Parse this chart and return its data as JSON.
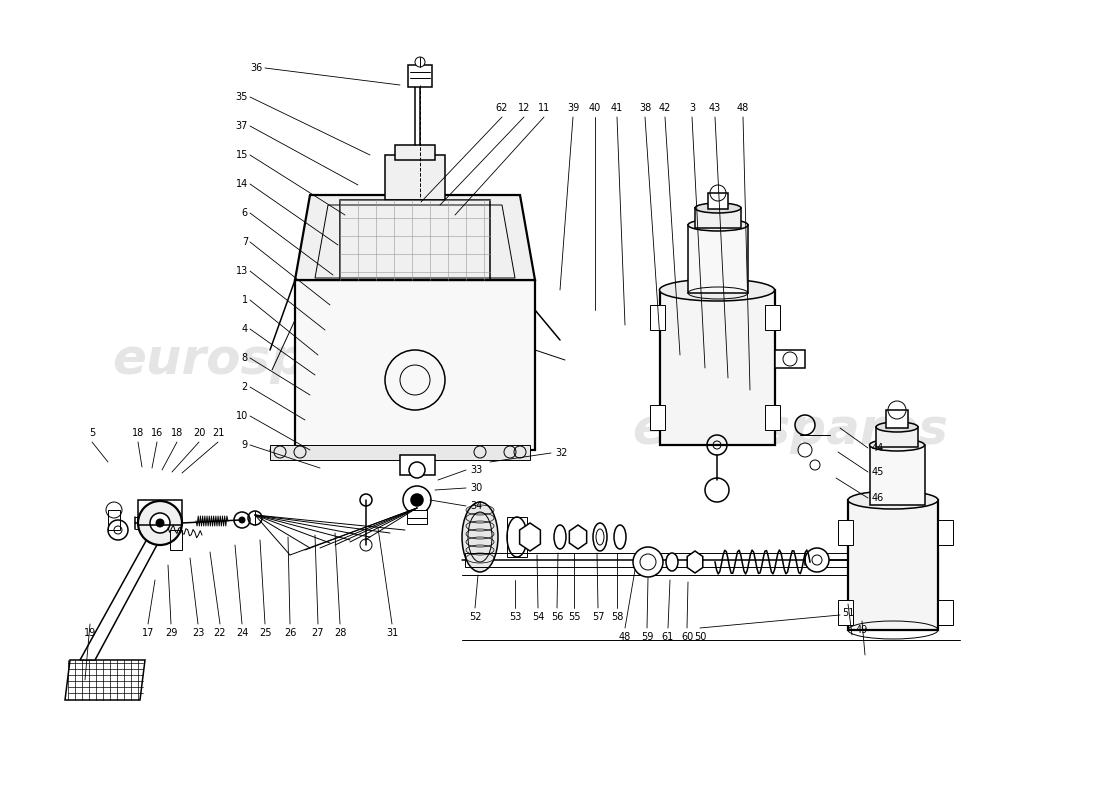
{
  "background_color": "#ffffff",
  "line_color": "#000000",
  "watermark_color": "#d0d0d0",
  "lw_thin": 0.7,
  "lw_med": 1.1,
  "lw_thick": 1.6,
  "label_fontsize": 7.0,
  "watermark_fontsize": 36,
  "left_labels": [
    [
      "36",
      263,
      68
    ],
    [
      "35",
      248,
      97
    ],
    [
      "37",
      248,
      126
    ],
    [
      "15",
      248,
      155
    ],
    [
      "14",
      248,
      183
    ],
    [
      "6",
      248,
      212
    ],
    [
      "7",
      248,
      241
    ],
    [
      "13",
      248,
      270
    ],
    [
      "1",
      248,
      299
    ],
    [
      "4",
      248,
      328
    ],
    [
      "8",
      248,
      357
    ],
    [
      "2",
      248,
      386
    ],
    [
      "10",
      248,
      415
    ],
    [
      "9",
      248,
      444
    ]
  ],
  "top_labels": [
    [
      "62",
      502,
      115
    ],
    [
      "12",
      524,
      115
    ],
    [
      "11",
      544,
      115
    ],
    [
      "39",
      573,
      115
    ],
    [
      "40",
      595,
      115
    ],
    [
      "41",
      617,
      115
    ],
    [
      "38",
      645,
      115
    ],
    [
      "42",
      665,
      115
    ],
    [
      "3",
      692,
      115
    ],
    [
      "43",
      715,
      115
    ],
    [
      "48",
      743,
      115
    ]
  ],
  "right_labels": [
    [
      "44",
      870,
      450
    ],
    [
      "45",
      870,
      475
    ],
    [
      "46",
      870,
      500
    ]
  ],
  "bl_labels": [
    [
      "5",
      97,
      440
    ],
    [
      "18",
      138,
      440
    ],
    [
      "16",
      158,
      440
    ],
    [
      "18",
      178,
      440
    ],
    [
      "20",
      200,
      440
    ],
    [
      "21",
      218,
      440
    ]
  ],
  "cb_labels": [
    [
      "32",
      555,
      455
    ],
    [
      "33",
      472,
      473
    ],
    [
      "30",
      472,
      490
    ],
    [
      "34",
      472,
      508
    ]
  ],
  "bot_labels": [
    [
      "19",
      92,
      620
    ],
    [
      "17",
      148,
      620
    ],
    [
      "29",
      171,
      620
    ],
    [
      "23",
      198,
      620
    ],
    [
      "22",
      220,
      620
    ],
    [
      "24",
      242,
      620
    ],
    [
      "25",
      265,
      620
    ],
    [
      "26",
      290,
      620
    ],
    [
      "27",
      318,
      620
    ],
    [
      "28",
      340,
      620
    ],
    [
      "31",
      390,
      620
    ]
  ],
  "sc_labels": [
    [
      "52",
      494,
      570
    ],
    [
      "53",
      514,
      570
    ],
    [
      "54",
      537,
      570
    ],
    [
      "56",
      555,
      570
    ],
    [
      "55",
      573,
      570
    ],
    [
      "57",
      597,
      570
    ],
    [
      "58",
      617,
      570
    ],
    [
      "48",
      625,
      600
    ],
    [
      "59",
      648,
      600
    ],
    [
      "61",
      668,
      600
    ],
    [
      "60",
      688,
      600
    ],
    [
      "50",
      700,
      600
    ],
    [
      "51",
      848,
      600
    ],
    [
      "49",
      860,
      618
    ]
  ]
}
